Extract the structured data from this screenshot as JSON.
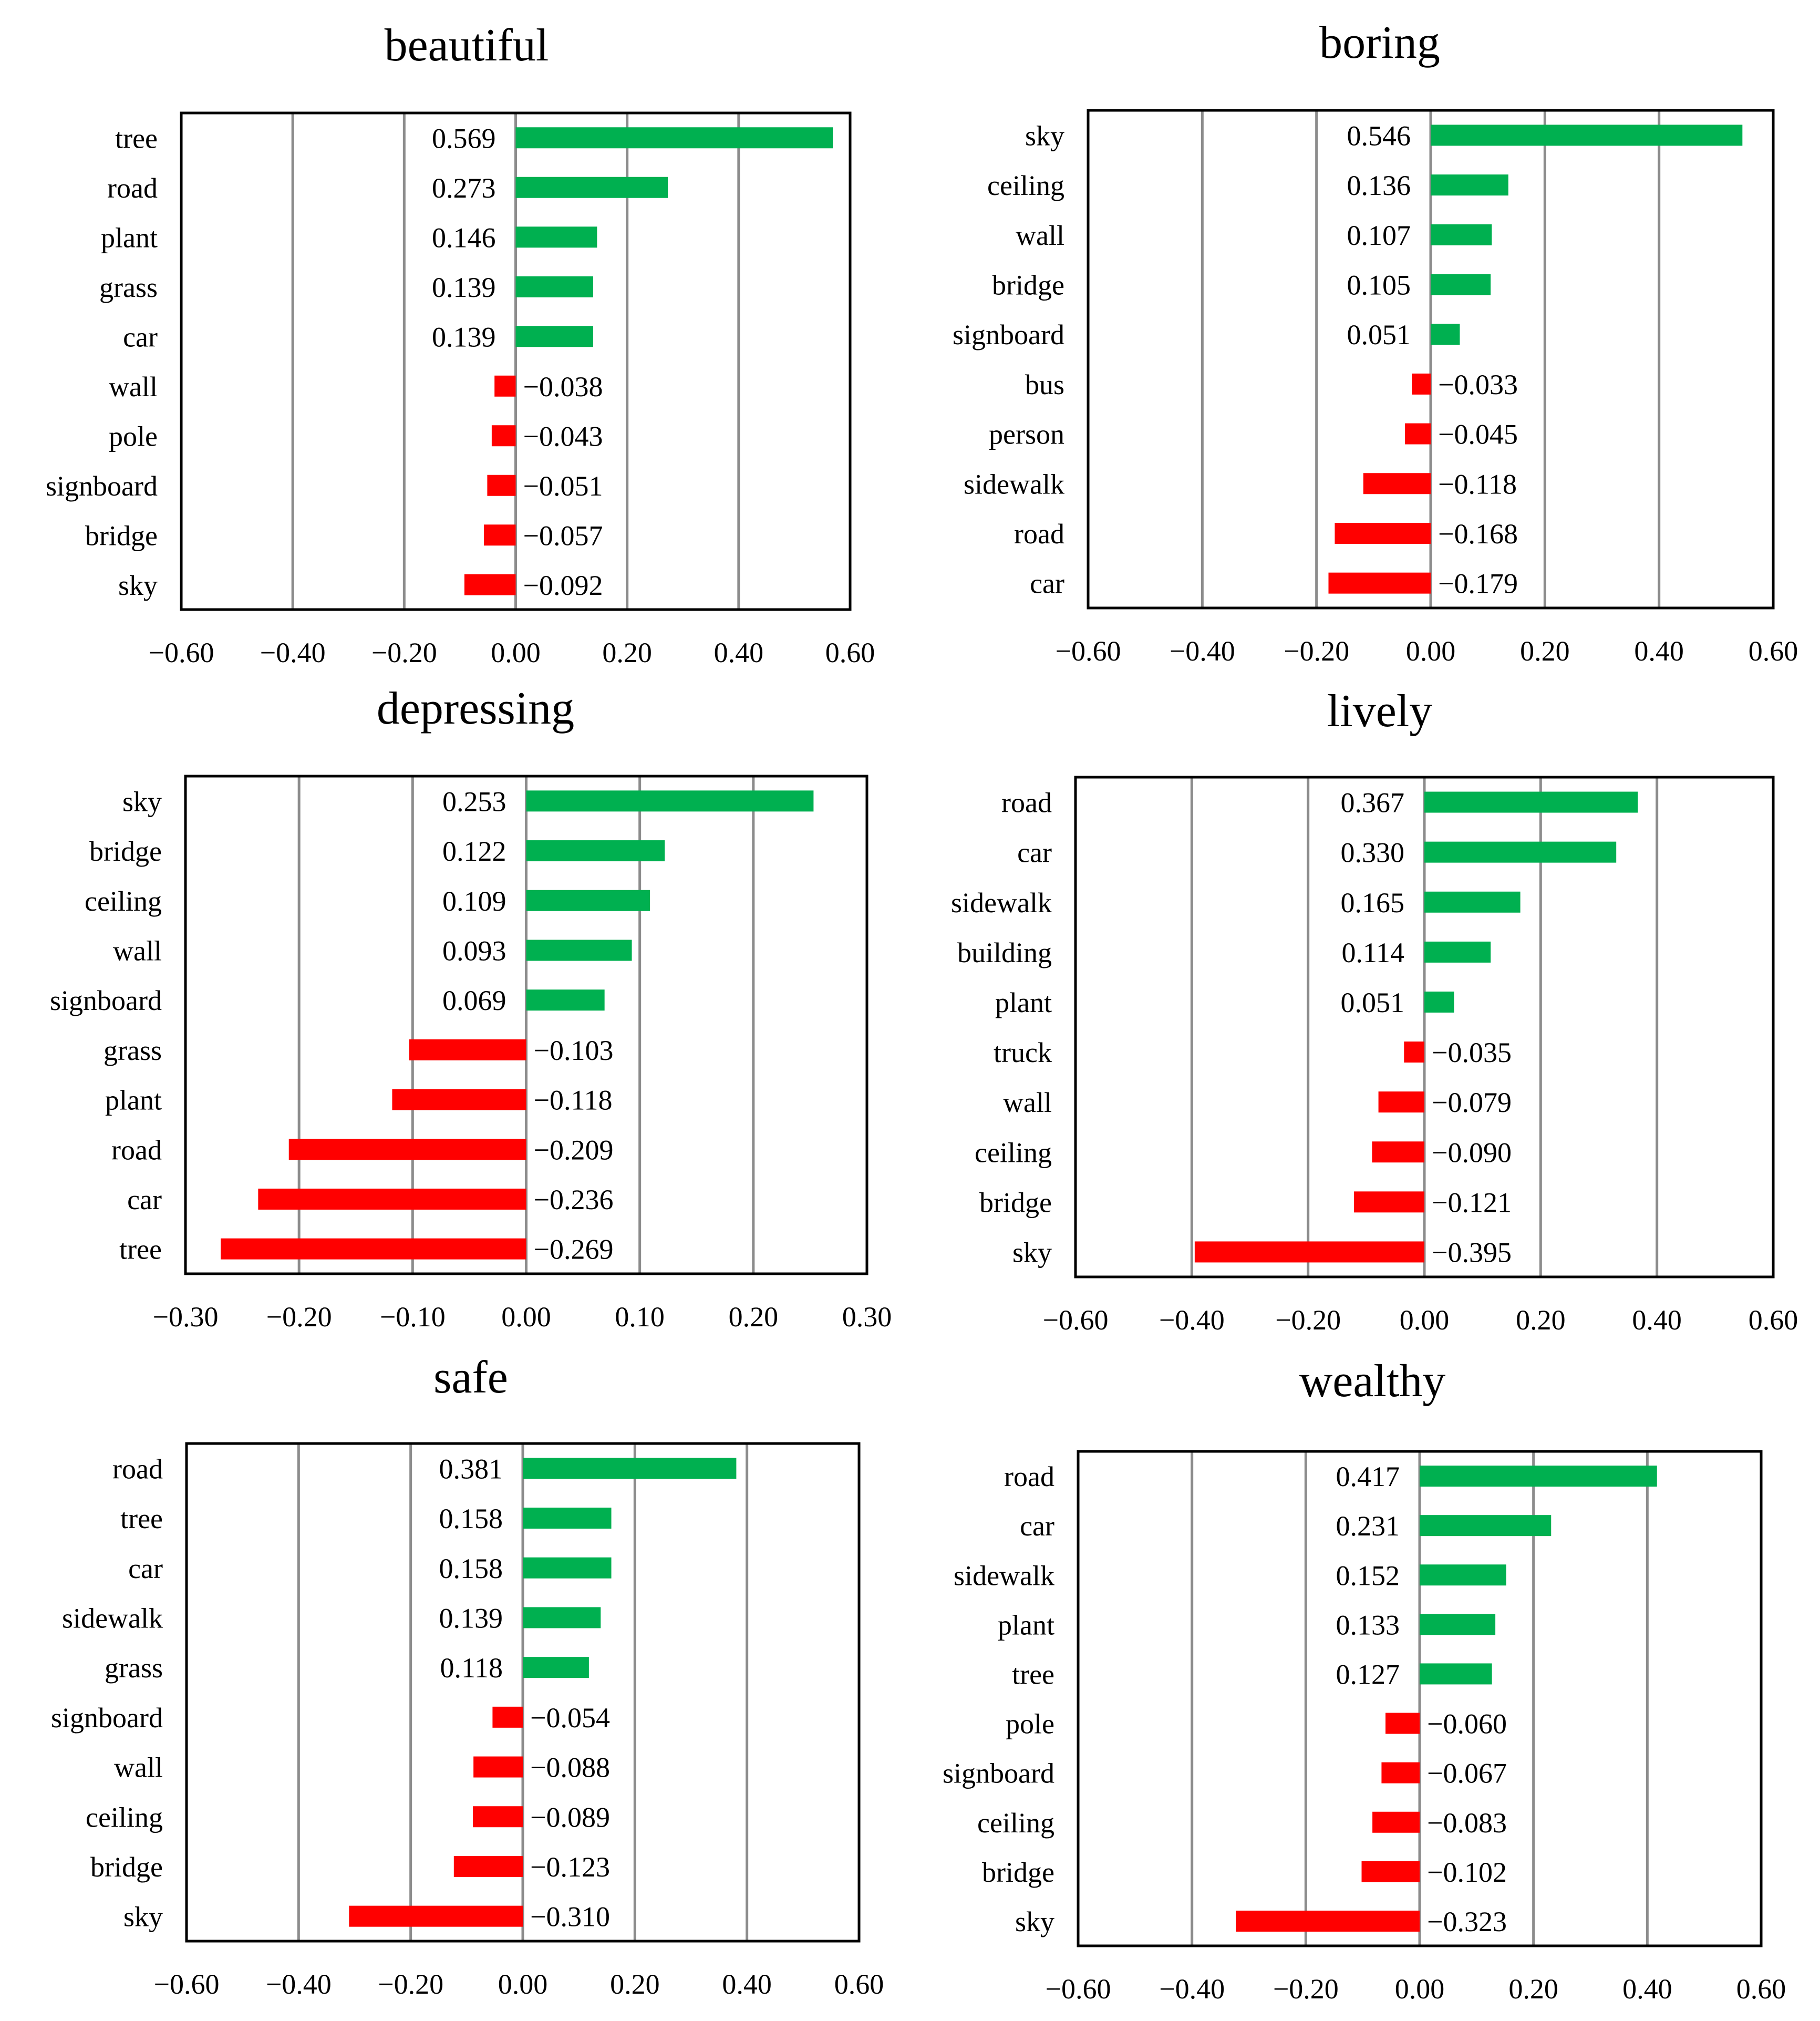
{
  "colors": {
    "positive": "#00b050",
    "negative": "#ff0000",
    "grid": "#8c8c8c",
    "frame": "#000000"
  },
  "chart_data": [
    {
      "type": "bar",
      "orientation": "horizontal",
      "title": "beautiful",
      "categories": [
        "tree",
        "road",
        "plant",
        "grass",
        "car",
        "wall",
        "pole",
        "signboard",
        "bridge",
        "sky"
      ],
      "values": [
        0.569,
        0.273,
        0.146,
        0.139,
        0.139,
        -0.038,
        -0.043,
        -0.051,
        -0.057,
        -0.092
      ],
      "value_labels": [
        "0.569",
        "0.273",
        "0.146",
        "0.139",
        "0.139",
        "−0.038",
        "−0.043",
        "−0.051",
        "−0.057",
        "−0.092"
      ],
      "xlim": [
        -0.6,
        0.6
      ],
      "ticks": [
        -0.6,
        -0.4,
        -0.2,
        0,
        0.2,
        0.4,
        0.6
      ],
      "tick_labels": [
        "−0.60",
        "−0.40",
        "−0.20",
        "0.00",
        "0.20",
        "0.40",
        "0.60"
      ]
    },
    {
      "type": "bar",
      "orientation": "horizontal",
      "title": "boring",
      "categories": [
        "sky",
        "ceiling",
        "wall",
        "bridge",
        "signboard",
        "bus",
        "person",
        "sidewalk",
        "road",
        "car"
      ],
      "values": [
        0.546,
        0.136,
        0.107,
        0.105,
        0.051,
        -0.033,
        -0.045,
        -0.118,
        -0.168,
        -0.179
      ],
      "value_labels": [
        "0.546",
        "0.136",
        "0.107",
        "0.105",
        "0.051",
        "−0.033",
        "−0.045",
        "−0.118",
        "−0.168",
        "−0.179"
      ],
      "xlim": [
        -0.6,
        0.6
      ],
      "ticks": [
        -0.6,
        -0.4,
        -0.2,
        0,
        0.2,
        0.4,
        0.6
      ],
      "tick_labels": [
        "−0.60",
        "−0.40",
        "−0.20",
        "0.00",
        "0.20",
        "0.40",
        "0.60"
      ]
    },
    {
      "type": "bar",
      "orientation": "horizontal",
      "title": "depressing",
      "categories": [
        "sky",
        "bridge",
        "ceiling",
        "wall",
        "signboard",
        "grass",
        "plant",
        "road",
        "car",
        "tree"
      ],
      "values": [
        0.253,
        0.122,
        0.109,
        0.093,
        0.069,
        -0.103,
        -0.118,
        -0.209,
        -0.236,
        -0.269
      ],
      "value_labels": [
        "0.253",
        "0.122",
        "0.109",
        "0.093",
        "0.069",
        "−0.103",
        "−0.118",
        "−0.209",
        "−0.236",
        "−0.269"
      ],
      "xlim": [
        -0.3,
        0.3
      ],
      "ticks": [
        -0.3,
        -0.2,
        -0.1,
        0,
        0.1,
        0.2,
        0.3
      ],
      "tick_labels": [
        "−0.30",
        "−0.20",
        "−0.10",
        "0.00",
        "0.10",
        "0.20",
        "0.30"
      ]
    },
    {
      "type": "bar",
      "orientation": "horizontal",
      "title": "lively",
      "categories": [
        "road",
        "car",
        "sidewalk",
        "building",
        "plant",
        "truck",
        "wall",
        "ceiling",
        "bridge",
        "sky"
      ],
      "values": [
        0.367,
        0.33,
        0.165,
        0.114,
        0.051,
        -0.035,
        -0.079,
        -0.09,
        -0.121,
        -0.395
      ],
      "value_labels": [
        "0.367",
        "0.330",
        "0.165",
        "0.114",
        "0.051",
        "−0.035",
        "−0.079",
        "−0.090",
        "−0.121",
        "−0.395"
      ],
      "xlim": [
        -0.6,
        0.6
      ],
      "ticks": [
        -0.6,
        -0.4,
        -0.2,
        0,
        0.2,
        0.4,
        0.6
      ],
      "tick_labels": [
        "−0.60",
        "−0.40",
        "−0.20",
        "0.00",
        "0.20",
        "0.40",
        "0.60"
      ]
    },
    {
      "type": "bar",
      "orientation": "horizontal",
      "title": "safe",
      "categories": [
        "road",
        "tree",
        "car",
        "sidewalk",
        "grass",
        "signboard",
        "wall",
        "ceiling",
        "bridge",
        "sky"
      ],
      "values": [
        0.381,
        0.158,
        0.158,
        0.139,
        0.118,
        -0.054,
        -0.088,
        -0.089,
        -0.123,
        -0.31
      ],
      "value_labels": [
        "0.381",
        "0.158",
        "0.158",
        "0.139",
        "0.118",
        "−0.054",
        "−0.088",
        "−0.089",
        "−0.123",
        "−0.310"
      ],
      "xlim": [
        -0.6,
        0.6
      ],
      "ticks": [
        -0.6,
        -0.4,
        -0.2,
        0,
        0.2,
        0.4,
        0.6
      ],
      "tick_labels": [
        "−0.60",
        "−0.40",
        "−0.20",
        "0.00",
        "0.20",
        "0.40",
        "0.60"
      ]
    },
    {
      "type": "bar",
      "orientation": "horizontal",
      "title": "wealthy",
      "categories": [
        "road",
        "car",
        "sidewalk",
        "plant",
        "tree",
        "pole",
        "signboard",
        "ceiling",
        "bridge",
        "sky"
      ],
      "values": [
        0.417,
        0.231,
        0.152,
        0.133,
        0.127,
        -0.06,
        -0.067,
        -0.083,
        -0.102,
        -0.323
      ],
      "value_labels": [
        "0.417",
        "0.231",
        "0.152",
        "0.133",
        "0.127",
        "−0.060",
        "−0.067",
        "−0.083",
        "−0.102",
        "−0.323"
      ],
      "xlim": [
        -0.6,
        0.6
      ],
      "ticks": [
        -0.6,
        -0.4,
        -0.2,
        0,
        0.2,
        0.4,
        0.6
      ],
      "tick_labels": [
        "−0.60",
        "−0.40",
        "−0.20",
        "0.00",
        "0.20",
        "0.40",
        "0.60"
      ]
    }
  ]
}
